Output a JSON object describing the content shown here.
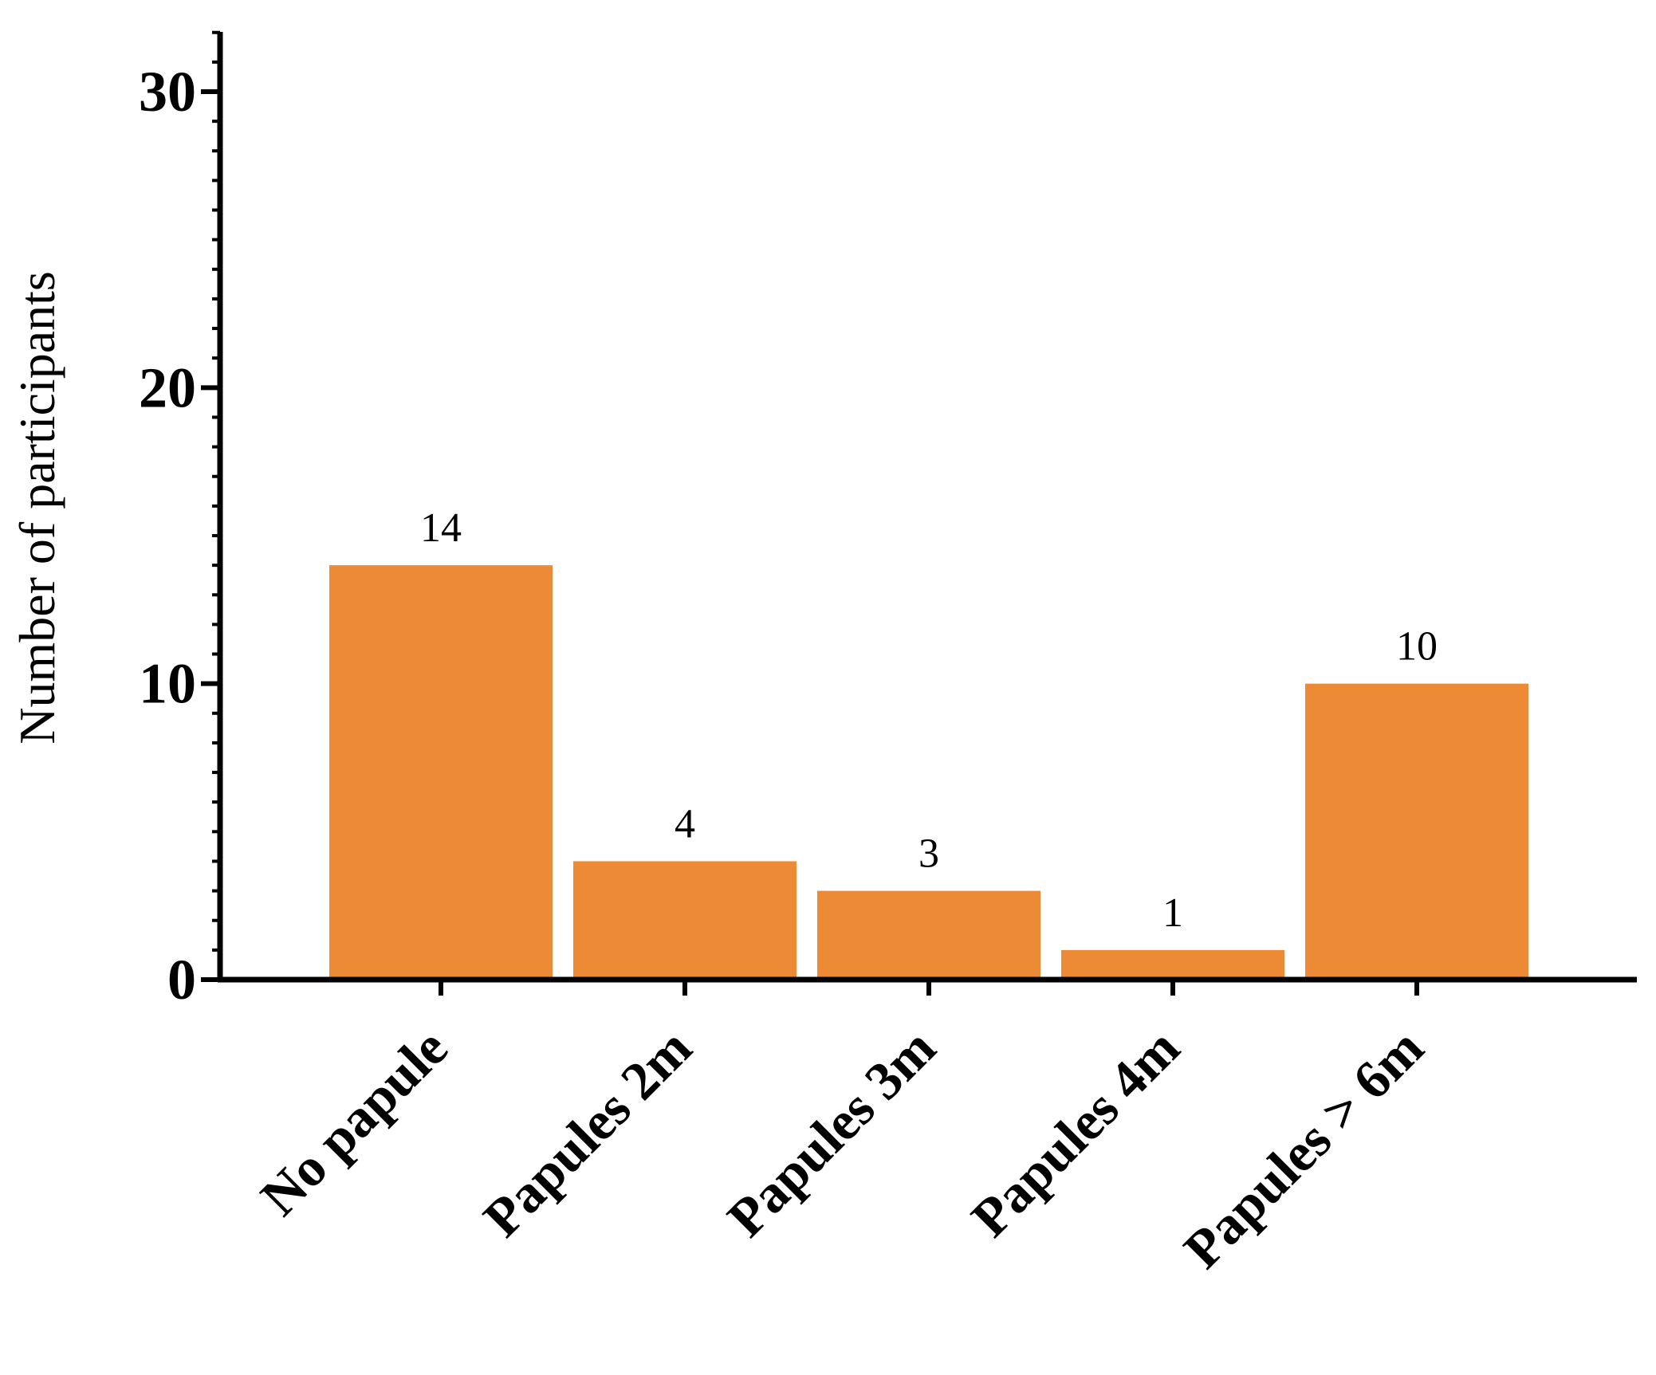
{
  "chart_data": {
    "type": "bar",
    "categories": [
      "No papule",
      "Papules 2m",
      "Papules 3m",
      "Papules 4m",
      "Papules > 6m"
    ],
    "values": [
      14,
      4,
      3,
      1,
      10
    ],
    "data_labels": [
      "14",
      "4",
      "3",
      "1",
      "10"
    ],
    "title": "",
    "xlabel": "",
    "ylabel": "Number of participants",
    "ylim": [
      0,
      32
    ],
    "yticks": [
      0,
      10,
      20,
      30
    ],
    "ytick_labels": [
      "0",
      "10",
      "20",
      "30"
    ],
    "minor_tick_step": 1,
    "grid": false,
    "legend": "none",
    "bar_color": "#ED8A35",
    "axis_color": "#000000"
  }
}
